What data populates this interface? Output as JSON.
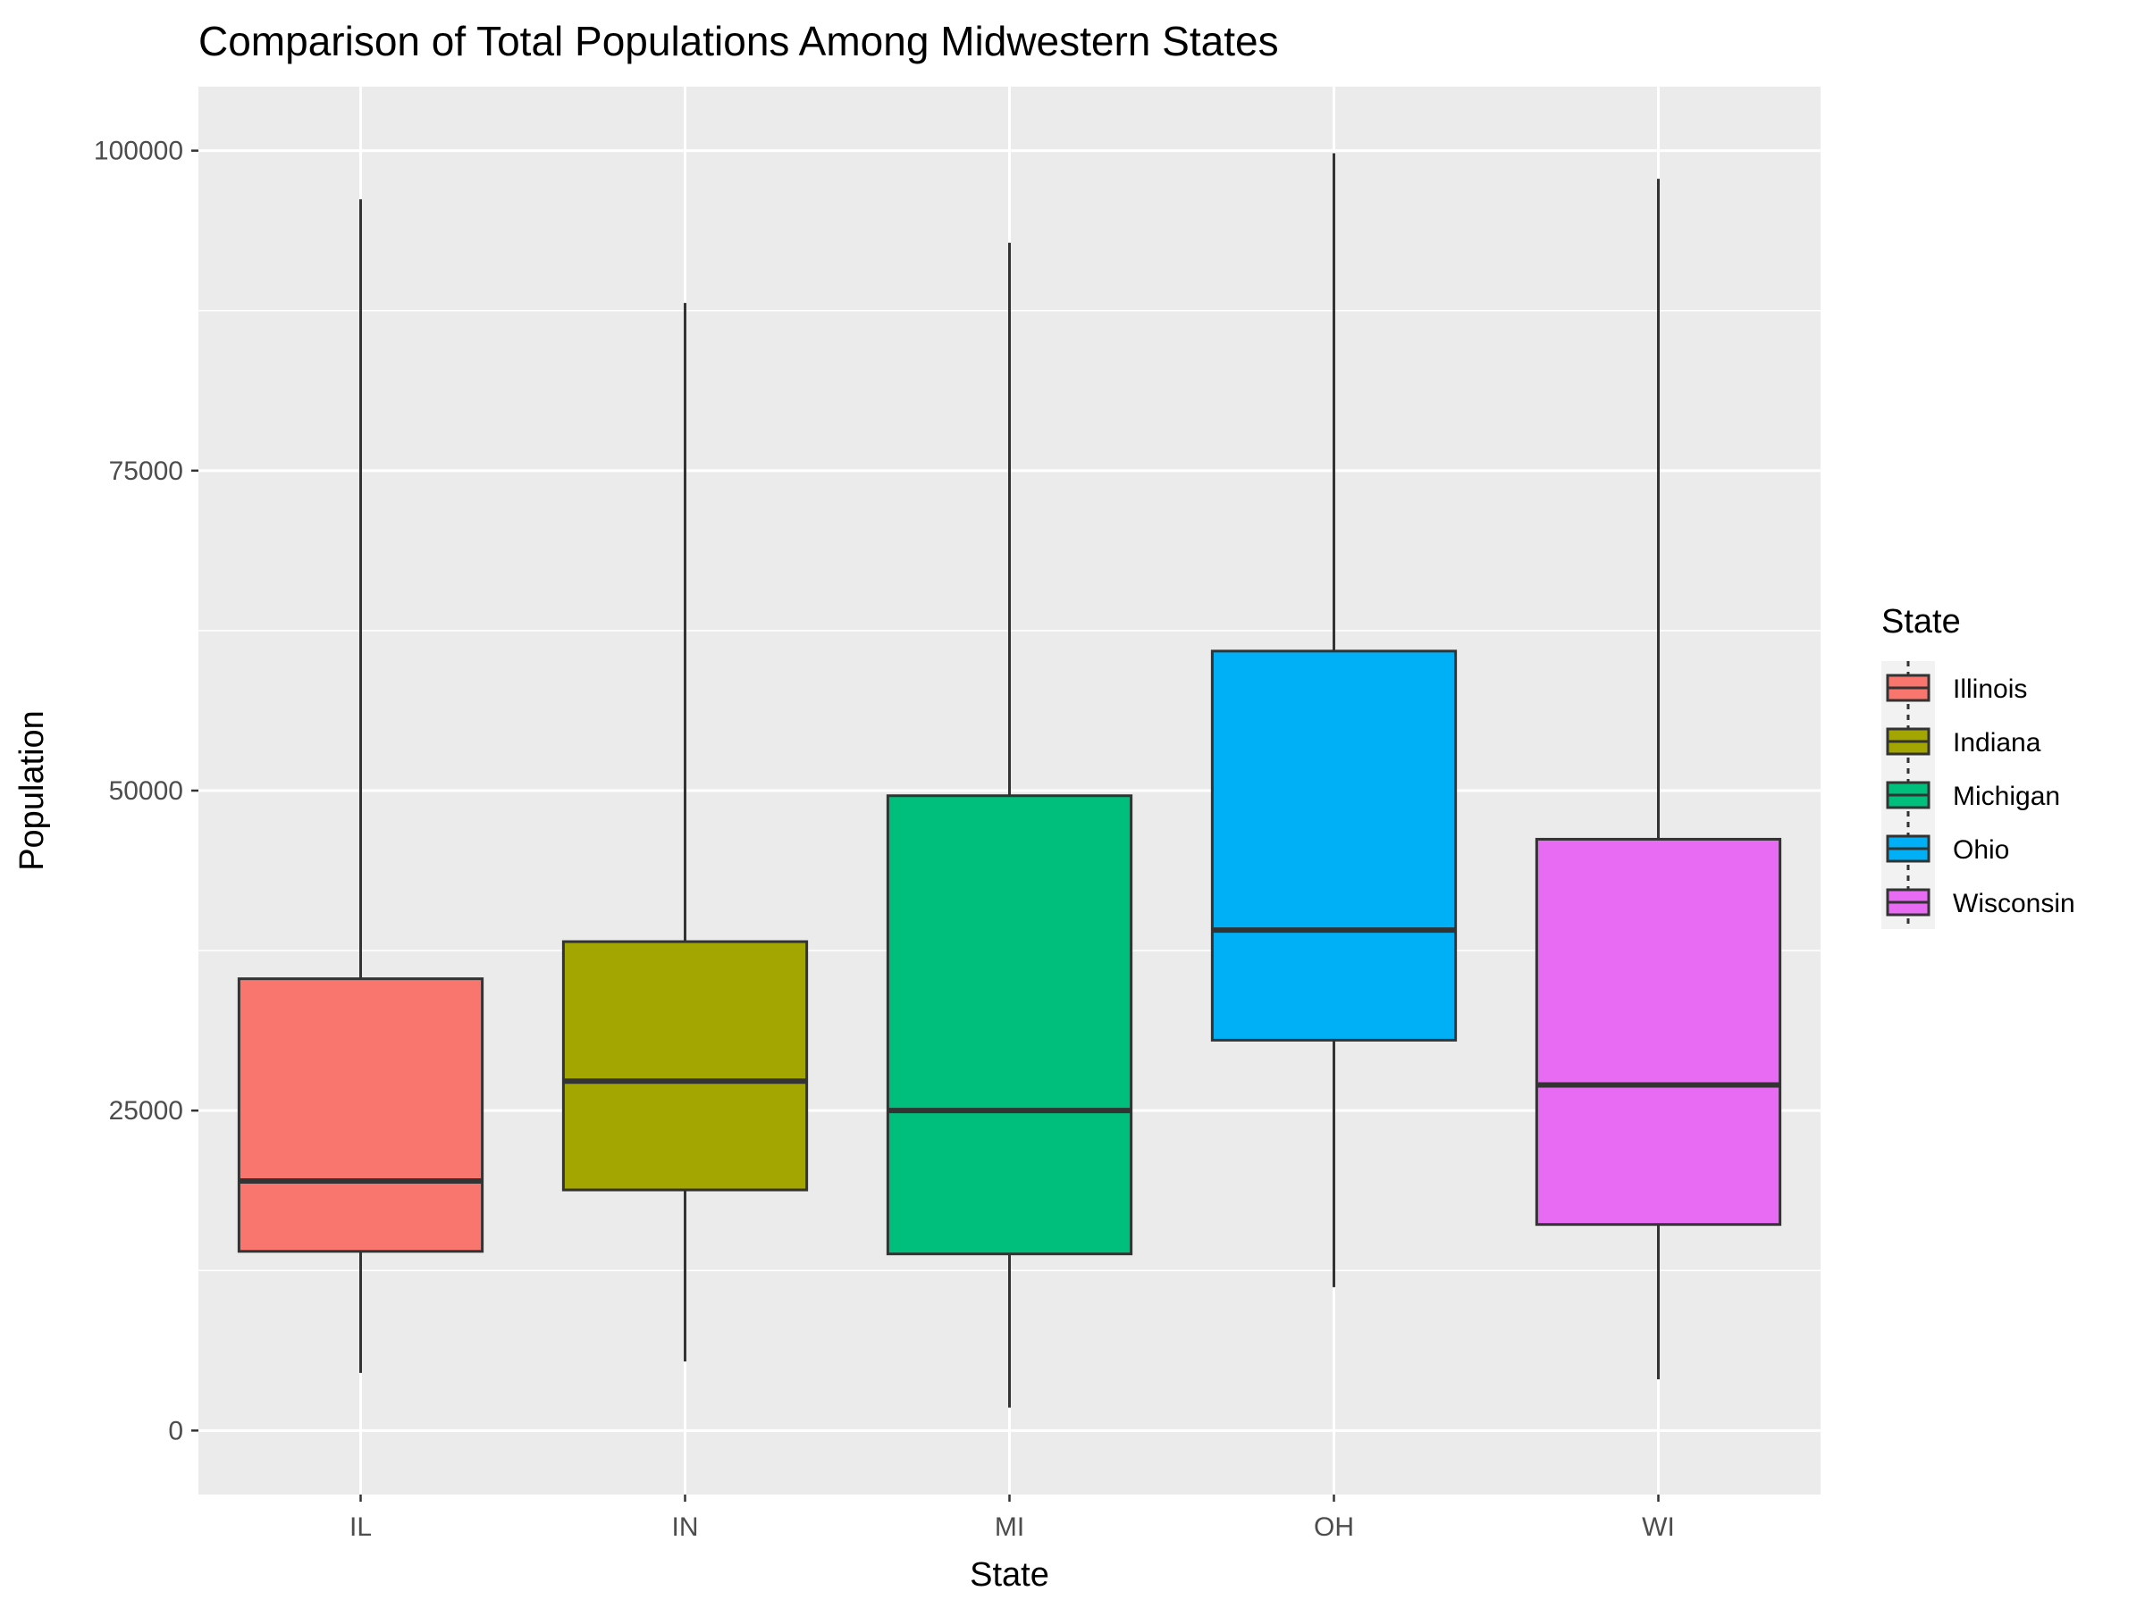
{
  "chart_data": {
    "type": "boxplot",
    "title": "Comparison of Total Populations Among Midwestern States",
    "xlabel": "State",
    "ylabel": "Population",
    "ylim": [
      -5000,
      105000
    ],
    "yticks": [
      0,
      25000,
      50000,
      75000,
      100000
    ],
    "ytick_labels": [
      "0",
      "25000",
      "50000",
      "75000",
      "100000"
    ],
    "categories": [
      "IL",
      "IN",
      "MI",
      "OH",
      "WI"
    ],
    "grid": true,
    "legend": {
      "title": "State",
      "position": "right",
      "entries": [
        "Illinois",
        "Indiana",
        "Michigan",
        "Ohio",
        "Wisconsin"
      ]
    },
    "series": [
      {
        "category": "IL",
        "legend": "Illinois",
        "min": 4500,
        "q1": 14000,
        "median": 19500,
        "q3": 35300,
        "max": 96200,
        "color": "#F8766D"
      },
      {
        "category": "IN",
        "legend": "Indiana",
        "min": 5400,
        "q1": 18800,
        "median": 27300,
        "q3": 38200,
        "max": 88100,
        "color": "#A3A500"
      },
      {
        "category": "MI",
        "legend": "Michigan",
        "min": 1800,
        "q1": 13800,
        "median": 25000,
        "q3": 49600,
        "max": 92800,
        "color": "#00BF7D"
      },
      {
        "category": "OH",
        "legend": "Ohio",
        "min": 11200,
        "q1": 30500,
        "median": 39100,
        "q3": 60900,
        "max": 99800,
        "color": "#00B0F6"
      },
      {
        "category": "WI",
        "legend": "Wisconsin",
        "min": 4000,
        "q1": 16100,
        "median": 27000,
        "q3": 46200,
        "max": 97800,
        "color": "#E76BF3"
      }
    ]
  }
}
